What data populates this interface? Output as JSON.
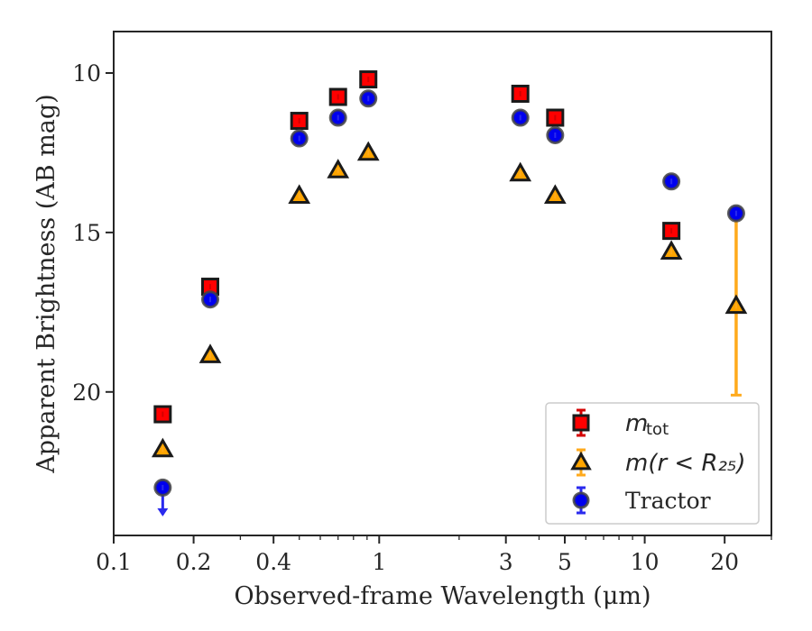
{
  "chart_data": {
    "type": "scatter",
    "xlabel": "Observed-frame Wavelength (μm)",
    "ylabel": "Apparent Brightness (AB mag)",
    "x_scale": "log",
    "y_inverted": true,
    "xlim": [
      0.1,
      30
    ],
    "ylim": [
      24.5,
      8.7
    ],
    "x_ticks": [
      {
        "value": 0.1,
        "label": "0.1"
      },
      {
        "value": 0.2,
        "label": "0.2"
      },
      {
        "value": 0.4,
        "label": "0.4"
      },
      {
        "value": 1,
        "label": "1"
      },
      {
        "value": 3,
        "label": "3"
      },
      {
        "value": 5,
        "label": "5"
      },
      {
        "value": 10,
        "label": "10"
      },
      {
        "value": 20,
        "label": "20"
      }
    ],
    "y_ticks": [
      {
        "value": 10,
        "label": "10"
      },
      {
        "value": 15,
        "label": "15"
      },
      {
        "value": 20,
        "label": "20"
      }
    ],
    "grid": false,
    "legend_position": "bottom-right",
    "series": [
      {
        "key": "m_tot",
        "legend_label": "tot",
        "legend_math_base": "m",
        "marker": "square",
        "color": "#ff0000",
        "edge_color": "#1a1a1a",
        "error_color": "#d40000",
        "points": [
          {
            "x": 0.153,
            "y": 20.7
          },
          {
            "x": 0.231,
            "y": 16.7
          },
          {
            "x": 0.5,
            "y": 11.5
          },
          {
            "x": 0.7,
            "y": 10.75
          },
          {
            "x": 0.91,
            "y": 10.2
          },
          {
            "x": 3.4,
            "y": 10.65
          },
          {
            "x": 4.6,
            "y": 11.4
          },
          {
            "x": 12.6,
            "y": 14.95
          }
        ]
      },
      {
        "key": "m_r25",
        "legend_label": "m(r < R₂₅)",
        "marker": "triangle",
        "color": "#ffa500",
        "edge_color": "#1a1a1a",
        "error_color": "#ffaa1c",
        "points": [
          {
            "x": 0.153,
            "y": 21.8
          },
          {
            "x": 0.231,
            "y": 18.85
          },
          {
            "x": 0.5,
            "y": 13.85
          },
          {
            "x": 0.7,
            "y": 13.05
          },
          {
            "x": 0.91,
            "y": 12.5
          },
          {
            "x": 3.4,
            "y": 13.15
          },
          {
            "x": 4.6,
            "y": 13.85
          },
          {
            "x": 12.6,
            "y": 15.6
          },
          {
            "x": 22.1,
            "y": 17.3,
            "yerr_low": 14.3,
            "yerr_high": 20.1
          }
        ]
      },
      {
        "key": "tractor",
        "legend_label": "Tractor",
        "marker": "circle",
        "color": "#0000ee",
        "edge_color": "#444444",
        "error_color": "#2a2aee",
        "points": [
          {
            "x": 0.153,
            "y": 23.0,
            "upper_limit": true
          },
          {
            "x": 0.231,
            "y": 17.1
          },
          {
            "x": 0.5,
            "y": 12.05
          },
          {
            "x": 0.7,
            "y": 11.4
          },
          {
            "x": 0.91,
            "y": 10.8
          },
          {
            "x": 3.4,
            "y": 11.4
          },
          {
            "x": 4.6,
            "y": 11.95
          },
          {
            "x": 12.6,
            "y": 13.4
          },
          {
            "x": 22.1,
            "y": 14.4
          }
        ]
      }
    ]
  }
}
